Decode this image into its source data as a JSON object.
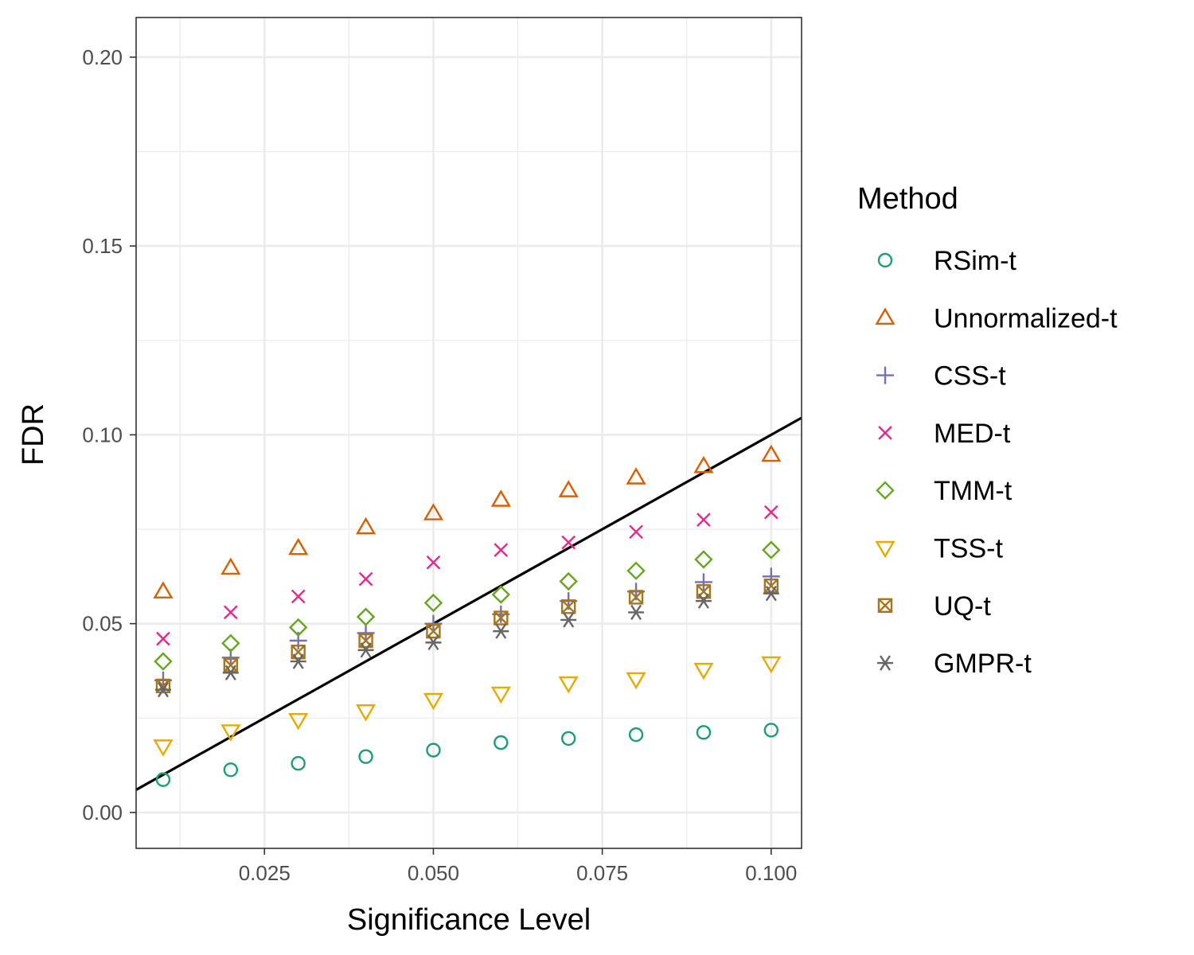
{
  "chart_data": {
    "type": "scatter",
    "xlabel": "Significance Level",
    "ylabel": "FDR",
    "xlim": [
      0.006,
      0.1045
    ],
    "ylim": [
      -0.0095,
      0.2105
    ],
    "x_ticks": [
      0.025,
      0.05,
      0.075,
      0.1
    ],
    "x_tick_labels": [
      "0.025",
      "0.050",
      "0.075",
      "0.100"
    ],
    "y_ticks": [
      0.0,
      0.05,
      0.1,
      0.15,
      0.2
    ],
    "y_tick_labels": [
      "0.00",
      "0.05",
      "0.10",
      "0.15",
      "0.20"
    ],
    "grid": true,
    "reference_line": {
      "slope": 1,
      "intercept": 0
    },
    "legend": {
      "title": "Method",
      "position": "right"
    },
    "x": [
      0.01,
      0.02,
      0.03,
      0.04,
      0.05,
      0.06,
      0.07,
      0.08,
      0.09,
      0.1
    ],
    "series": [
      {
        "name": "RSim-t",
        "shape": "circle",
        "color": "#1b9e77",
        "values": [
          0.0087,
          0.0113,
          0.013,
          0.0148,
          0.0165,
          0.0185,
          0.0196,
          0.0206,
          0.0212,
          0.0218
        ]
      },
      {
        "name": "Unnormalized-t",
        "shape": "triangle-up",
        "color": "#d95f02",
        "values": [
          0.0585,
          0.0648,
          0.07,
          0.0755,
          0.0792,
          0.0828,
          0.0853,
          0.0887,
          0.0917,
          0.0947
        ]
      },
      {
        "name": "CSS-t",
        "shape": "plus",
        "color": "#7570b3",
        "values": [
          0.035,
          0.041,
          0.0455,
          0.0475,
          0.05,
          0.0525,
          0.056,
          0.0585,
          0.061,
          0.0625
        ]
      },
      {
        "name": "MED-t",
        "shape": "cross",
        "color": "#e7298a",
        "values": [
          0.046,
          0.053,
          0.0572,
          0.0618,
          0.0662,
          0.0695,
          0.0715,
          0.0743,
          0.0775,
          0.0795
        ]
      },
      {
        "name": "TMM-t",
        "shape": "diamond",
        "color": "#66a61e",
        "values": [
          0.04,
          0.0448,
          0.049,
          0.0518,
          0.0555,
          0.0577,
          0.0612,
          0.064,
          0.067,
          0.0695
        ]
      },
      {
        "name": "TSS-t",
        "shape": "triangle-down",
        "color": "#e6ab02",
        "values": [
          0.0175,
          0.0215,
          0.0245,
          0.0268,
          0.0298,
          0.0315,
          0.0342,
          0.0353,
          0.0378,
          0.0395
        ]
      },
      {
        "name": "UQ-t",
        "shape": "square-x",
        "color": "#a6761d",
        "values": [
          0.0335,
          0.039,
          0.0425,
          0.0455,
          0.048,
          0.0515,
          0.0545,
          0.057,
          0.0585,
          0.06
        ]
      },
      {
        "name": "GMPR-t",
        "shape": "asterisk",
        "color": "#666666",
        "values": [
          0.0325,
          0.037,
          0.04,
          0.043,
          0.045,
          0.048,
          0.051,
          0.053,
          0.056,
          0.058
        ]
      }
    ]
  }
}
